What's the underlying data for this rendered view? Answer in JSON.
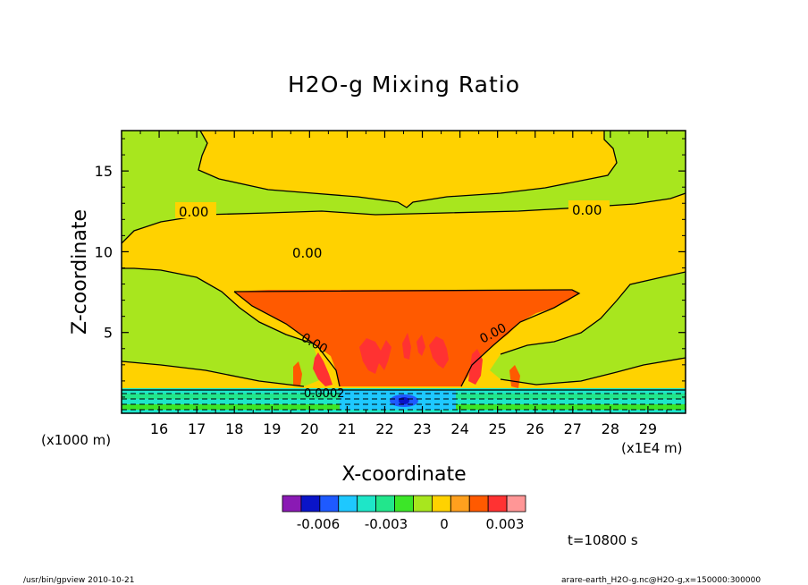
{
  "chart_data": {
    "type": "heatmap",
    "title": "H2O-g Mixing Ratio",
    "xlabel": "X-coordinate",
    "ylabel": "Z-coordinate",
    "x_unit": "(x1E4 m)",
    "y_unit": "(x1000 m)",
    "xlim": [
      15,
      30
    ],
    "ylim": [
      0,
      17.5
    ],
    "x_ticks": [
      "16",
      "17",
      "18",
      "19",
      "20",
      "21",
      "22",
      "23",
      "24",
      "25",
      "26",
      "27",
      "28",
      "29"
    ],
    "y_ticks": [
      "5",
      "10",
      "15"
    ],
    "contour_labels": [
      "0.00",
      "0.00",
      "0.00",
      "0.00",
      "0.00",
      "0.00",
      "0.0002"
    ],
    "colorbar": {
      "colors": [
        "#8a1ab4",
        "#0a14c8",
        "#1e5aff",
        "#1ec8ff",
        "#1ee6c8",
        "#22e68c",
        "#3ce628",
        "#a8e61e",
        "#ffd200",
        "#ffa01e",
        "#ff5a00",
        "#ff3232",
        "#ff9696"
      ],
      "tick_labels": [
        "-0.006",
        "-0.003",
        "0",
        "0.003"
      ]
    },
    "time_label": "t=10800 s",
    "footer_left": "/usr/bin/gpview   2010-10-21",
    "footer_right": "arare-earth_H2O-g.nc@H2O-g,x=150000:300000"
  }
}
